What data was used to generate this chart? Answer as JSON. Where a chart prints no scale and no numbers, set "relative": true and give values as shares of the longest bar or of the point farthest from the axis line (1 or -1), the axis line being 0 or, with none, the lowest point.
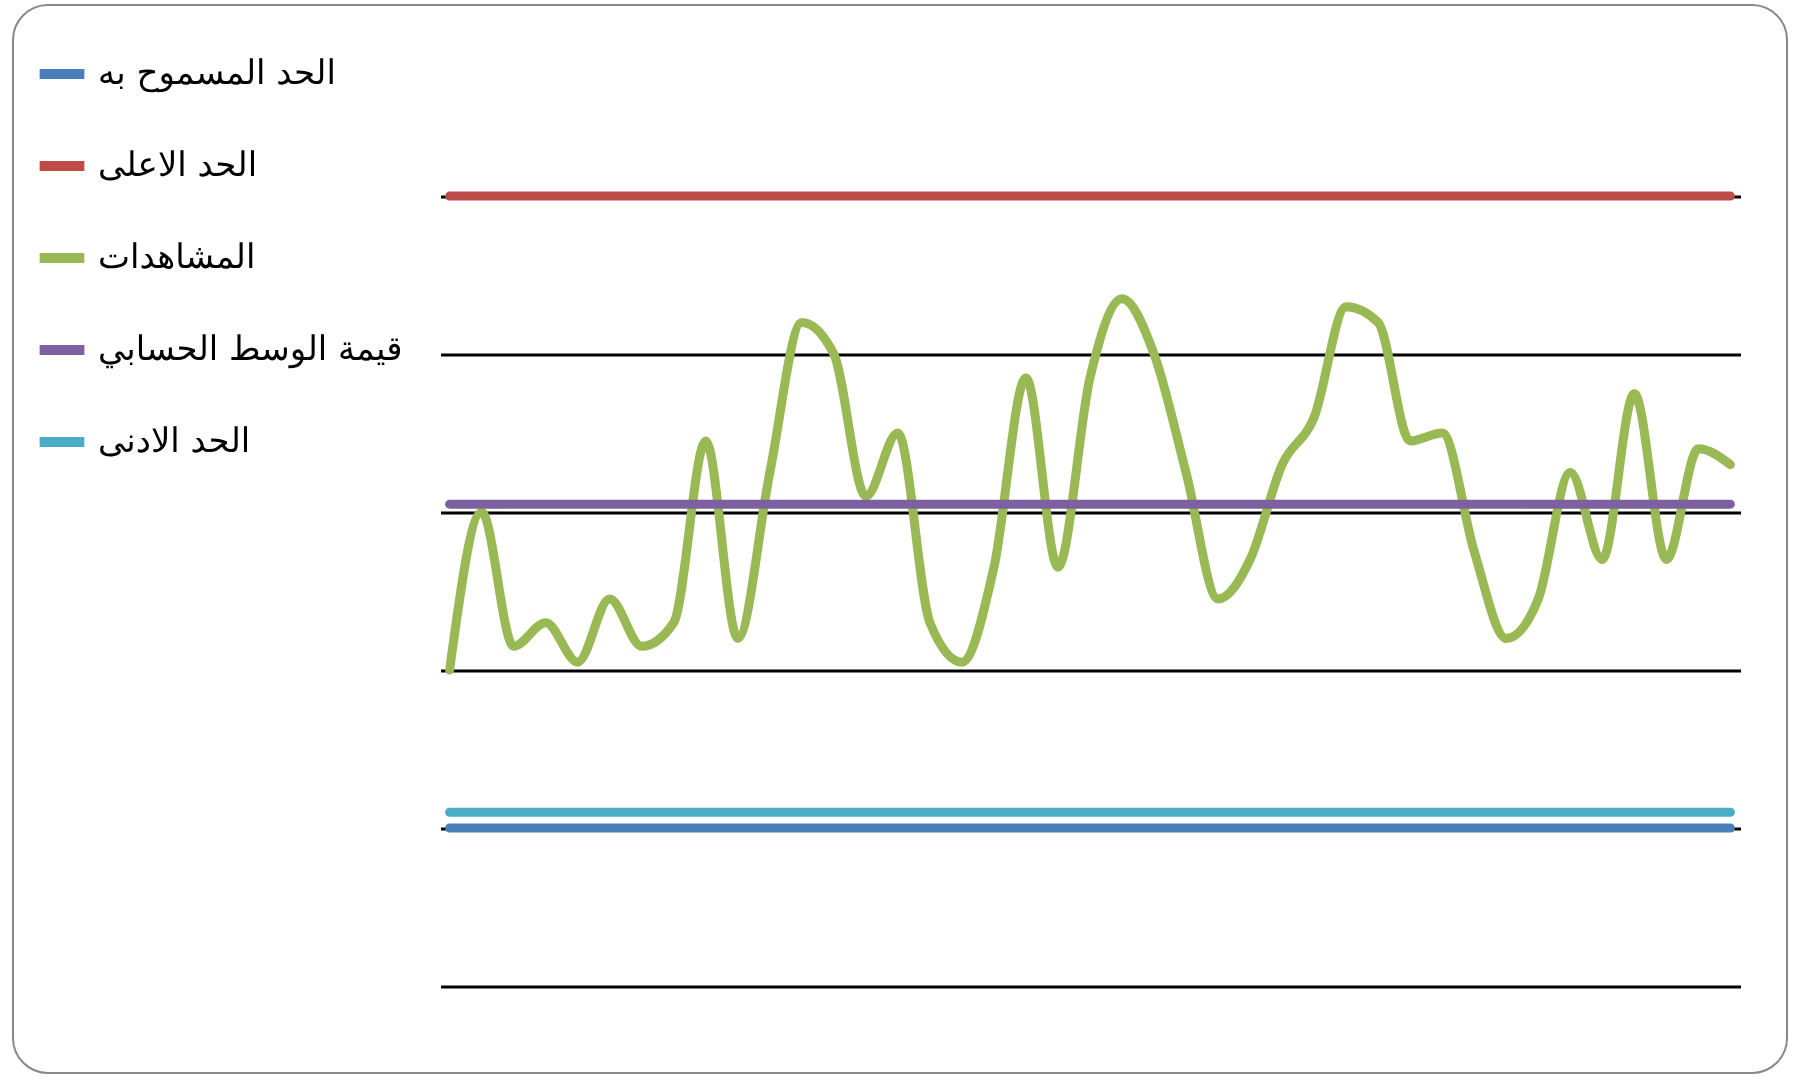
{
  "chart_data": {
    "type": "line",
    "relative": true,
    "grid": "y",
    "legend": "left",
    "marker": "none",
    "line_style": "solid",
    "categories": [
      null,
      null,
      null,
      null,
      null,
      null,
      null,
      null,
      null,
      null,
      null,
      null,
      null,
      null,
      null,
      null,
      null,
      null,
      null,
      null,
      null,
      null,
      null,
      null,
      null,
      null,
      null,
      null,
      null,
      null,
      null,
      null,
      null,
      null,
      null,
      null,
      null,
      null,
      null,
      null,
      null
    ],
    "series": [
      {
        "name": "الحد المسموح به",
        "color": "#4a7ebb",
        "values": [
          0.2,
          0.2,
          0.2,
          0.2,
          0.2,
          0.2,
          0.2,
          0.2,
          0.2,
          0.2,
          0.2,
          0.2,
          0.2,
          0.2,
          0.2,
          0.2,
          0.2,
          0.2,
          0.2,
          0.2,
          0.2,
          0.2,
          0.2,
          0.2,
          0.2,
          0.2,
          0.2,
          0.2,
          0.2,
          0.2,
          0.2,
          0.2,
          0.2,
          0.2,
          0.2,
          0.2,
          0.2,
          0.2,
          0.2,
          0.2,
          0.2
        ]
      },
      {
        "name": "الحد الاعلى",
        "color": "#be4b48",
        "values": [
          1,
          1,
          1,
          1,
          1,
          1,
          1,
          1,
          1,
          1,
          1,
          1,
          1,
          1,
          1,
          1,
          1,
          1,
          1,
          1,
          1,
          1,
          1,
          1,
          1,
          1,
          1,
          1,
          1,
          1,
          1,
          1,
          1,
          1,
          1,
          1,
          1,
          1,
          1,
          1,
          1
        ]
      },
      {
        "name": "المشاهدات",
        "color": "#98b954",
        "values": [
          0.4,
          0.6,
          0.43,
          0.46,
          0.41,
          0.49,
          0.43,
          0.46,
          0.69,
          0.44,
          0.65,
          0.84,
          0.8,
          0.62,
          0.7,
          0.46,
          0.41,
          0.53,
          0.77,
          0.53,
          0.77,
          0.87,
          0.8,
          0.65,
          0.49,
          0.54,
          0.66,
          0.72,
          0.86,
          0.84,
          0.69,
          0.7,
          0.55,
          0.44,
          0.49,
          0.65,
          0.54,
          0.75,
          0.54,
          0.68,
          0.66
        ]
      },
      {
        "name": "قيمة الوسط الحسابي",
        "color": "#7d60a0",
        "values": [
          0.61,
          0.61,
          0.61,
          0.61,
          0.61,
          0.61,
          0.61,
          0.61,
          0.61,
          0.61,
          0.61,
          0.61,
          0.61,
          0.61,
          0.61,
          0.61,
          0.61,
          0.61,
          0.61,
          0.61,
          0.61,
          0.61,
          0.61,
          0.61,
          0.61,
          0.61,
          0.61,
          0.61,
          0.61,
          0.61,
          0.61,
          0.61,
          0.61,
          0.61,
          0.61,
          0.61,
          0.61,
          0.61,
          0.61,
          0.61,
          0.61
        ]
      },
      {
        "name": "الحد الادنى",
        "color": "#4bacc6",
        "values": [
          0.22,
          0.22,
          0.22,
          0.22,
          0.22,
          0.22,
          0.22,
          0.22,
          0.22,
          0.22,
          0.22,
          0.22,
          0.22,
          0.22,
          0.22,
          0.22,
          0.22,
          0.22,
          0.22,
          0.22,
          0.22,
          0.22,
          0.22,
          0.22,
          0.22,
          0.22,
          0.22,
          0.22,
          0.22,
          0.22,
          0.22,
          0.22,
          0.22,
          0.22,
          0.22,
          0.22,
          0.22,
          0.22,
          0.22,
          0.22,
          0.22
        ]
      }
    ]
  }
}
